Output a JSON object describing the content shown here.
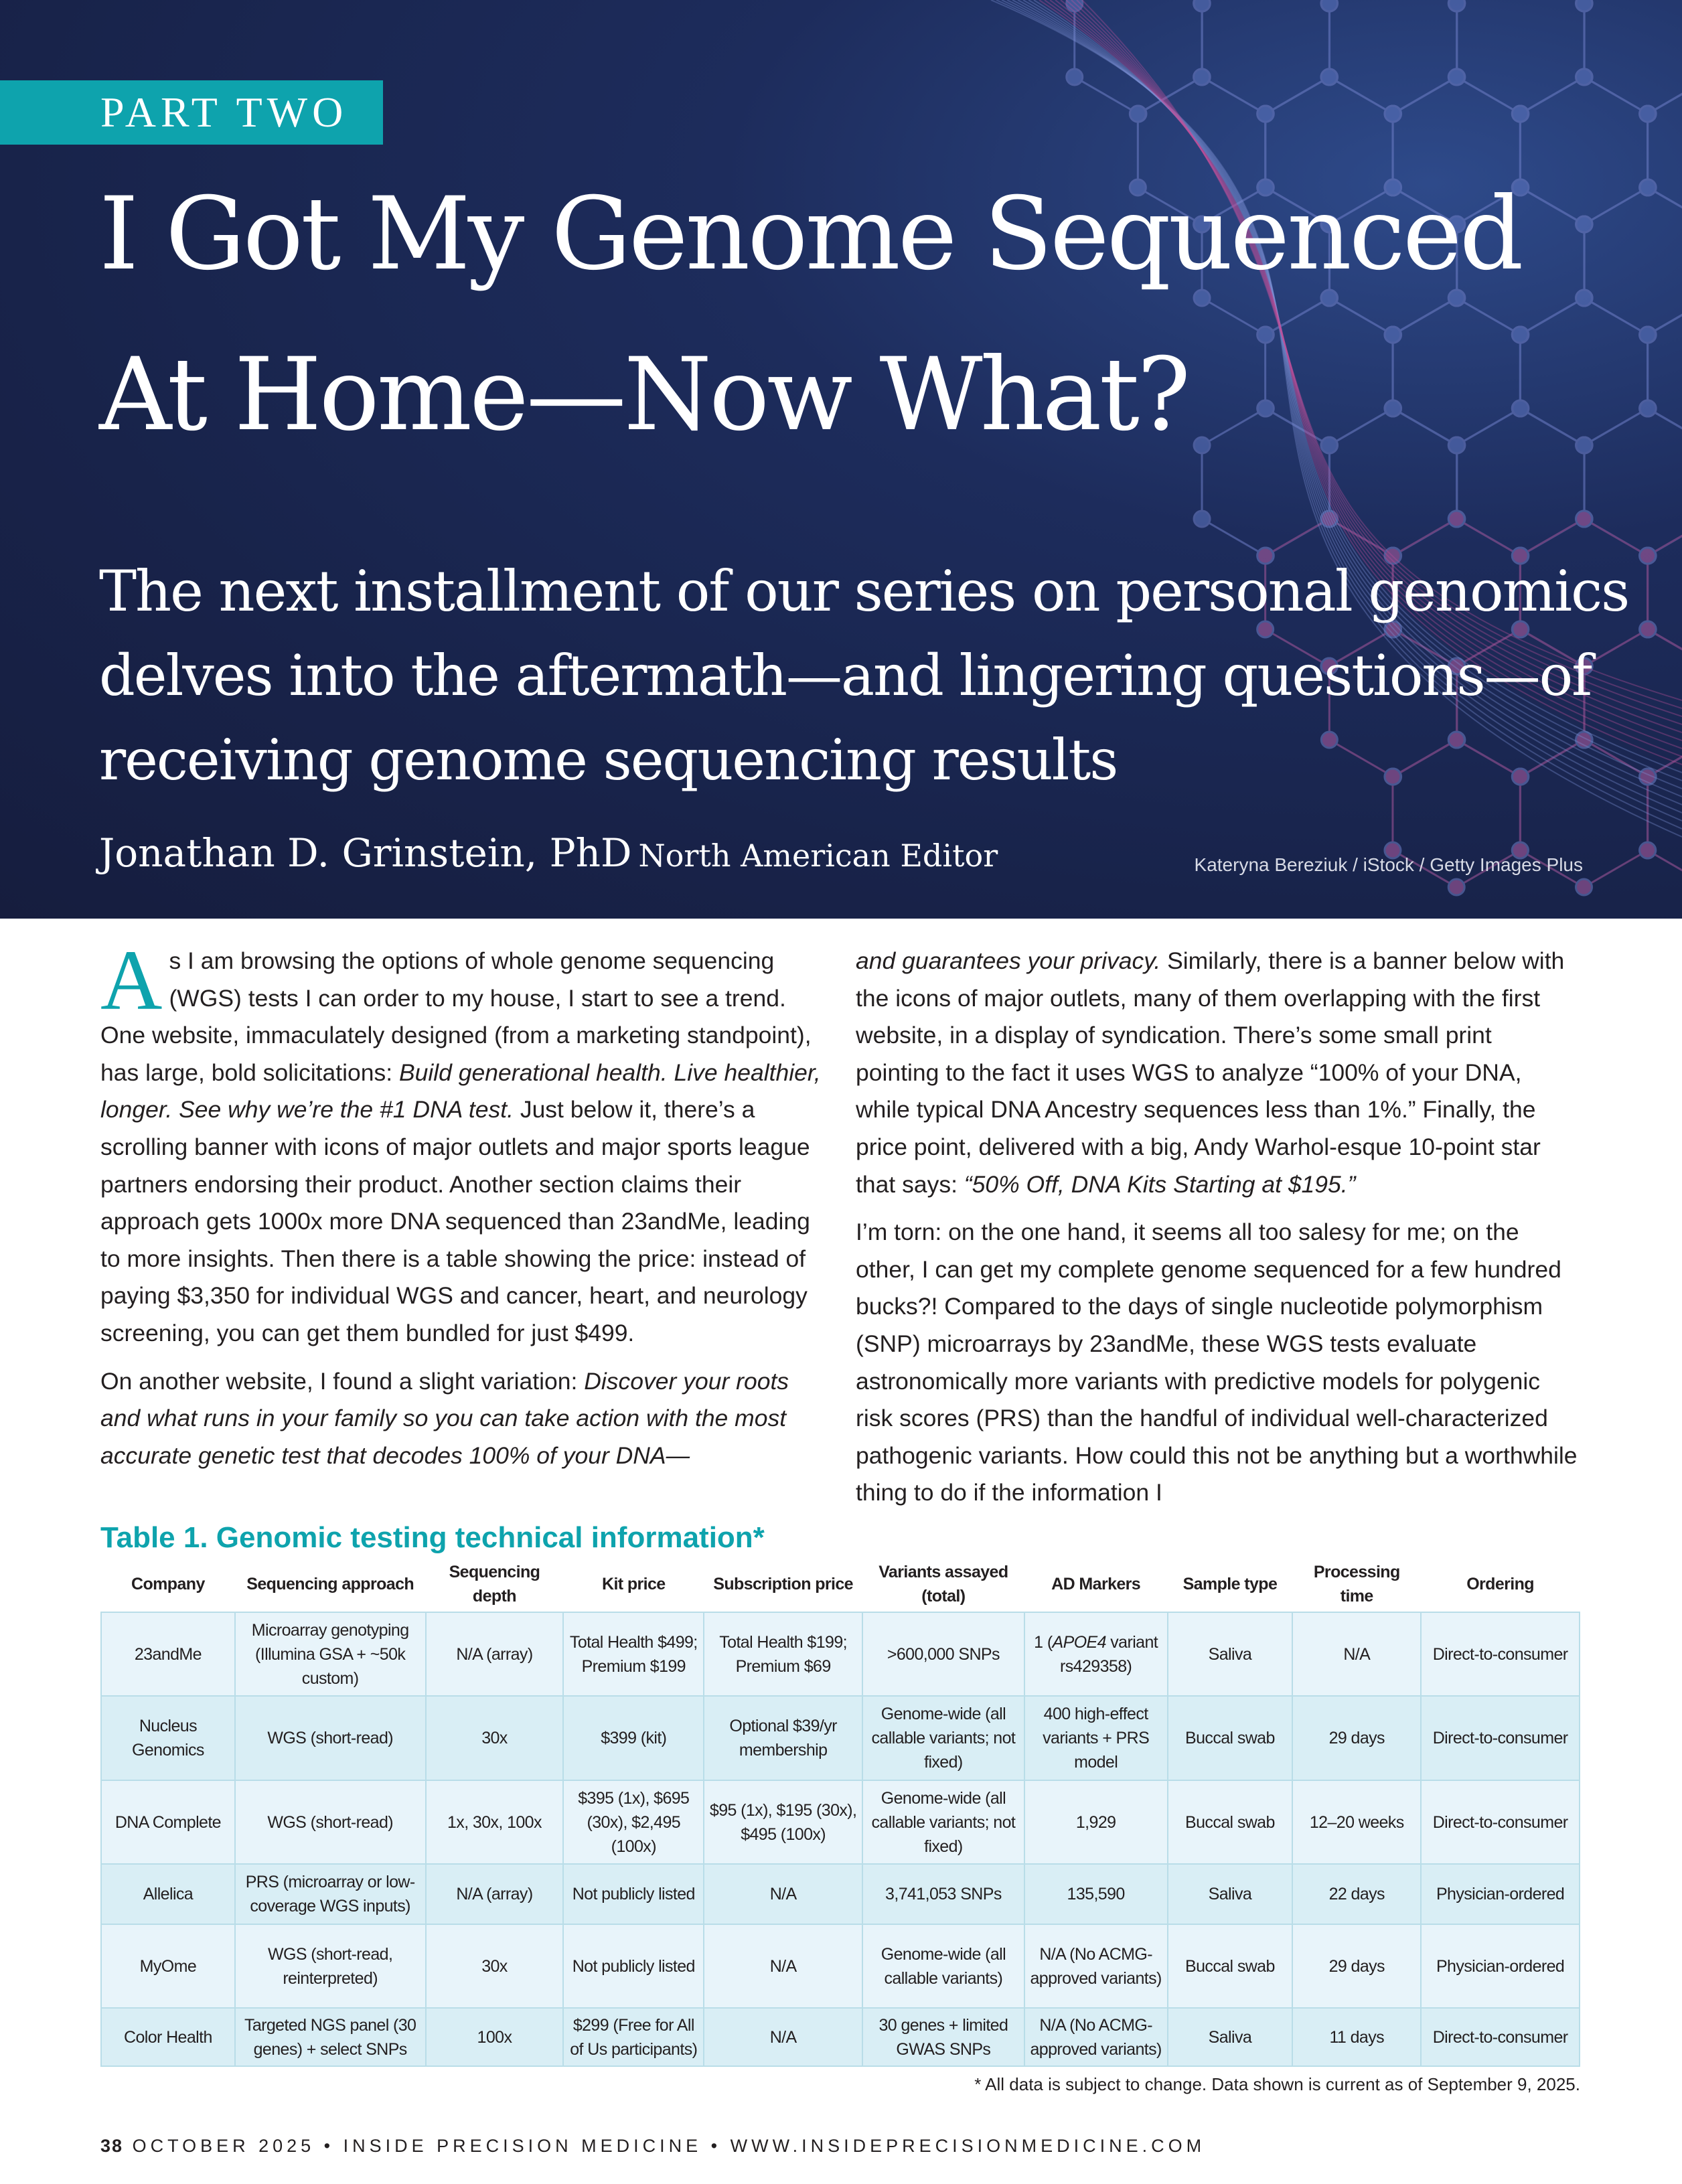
{
  "hero": {
    "part_label": "PART TWO",
    "title_line1": "I Got My Genome Sequenced",
    "title_line2": "At Home—Now What?",
    "subtitle": "The next installment of our series on personal genomics delves into the aftermath—and lingering questions—of receiving genome sequencing results",
    "author": "Jonathan D. Grinstein, PhD",
    "author_role": "North American Editor",
    "photo_credit": "Kateryna Bereziuk / iStock / Getty Images Plus",
    "bg_color": "#1b2755",
    "accent": "#0ea3ad"
  },
  "body": {
    "drop_cap": "A",
    "left": [
      [
        {
          "t": "s I am browsing the options of whole genome sequencing (WGS) tests I can order to my house, I start to see a trend. One website, immaculately designed (from a marketing standpoint), has large, bold solicitations: "
        },
        {
          "t": "Build generational health. Live healthier, longer. See why we’re the #1 DNA test.",
          "i": true
        },
        {
          "t": " Just below it, there’s a scrolling banner with icons of major outlets and major sports league partners endorsing their product. Another section claims their approach gets 1000x more DNA sequenced than 23andMe, leading to more insights. Then there is a table showing the price: instead of paying $3,350 for individual WGS and cancer, heart, and neurology screening, you can get them bundled for just $499."
        }
      ],
      [
        {
          "t": "On another website, I found a slight variation: "
        },
        {
          "t": "Discover your roots and what runs in your family so you can take action with the most accurate genetic test that decodes 100% of your DNA—",
          "i": true
        }
      ]
    ],
    "right": [
      [
        {
          "t": "and guarantees your privacy.",
          "i": true
        },
        {
          "t": " Similarly, there is a banner below with the icons of major outlets, many of them overlapping with the first website, in a display of syndication. There’s some small print pointing to the fact it uses WGS to analyze “100% of your DNA, while typical DNA Ancestry sequences less than 1%.” Finally, the price point, delivered with a big, Andy Warhol-esque 10-point star that says: "
        },
        {
          "t": "“50% Off, DNA Kits Starting at $195.”",
          "i": true
        }
      ],
      [
        {
          "t": "I’m torn: on the one hand, it seems all too salesy for me; on the other, I can get my complete genome sequenced for a few hundred bucks?! Compared to the days of single nucleotide polymorphism (SNP) microarrays by 23andMe, these WGS tests evaluate astronomically more variants with predictive models for polygenic risk scores (PRS) than the handful of individual well-characterized pathogenic variants. How could this not be anything but a worthwhile thing to do if the information I"
        }
      ]
    ]
  },
  "table": {
    "title": "Table 1. Genomic testing technical information*",
    "headers": [
      "Company",
      "Sequencing approach",
      "Sequencing depth",
      "Kit price",
      "Subscription price",
      "Variants assayed (total)",
      "AD Markers",
      "Sample type",
      "Processing time",
      "Ordering"
    ],
    "rows": [
      [
        "23andMe",
        "Microarray genotyping (Illumina GSA + ~50k custom)",
        "N/A (array)",
        "Total Health $499; Premium $199",
        "Total Health $199; Premium $69",
        ">600,000 SNPs",
        "1 (APOE4 variant rs429358)",
        "Saliva",
        "N/A",
        "Direct-to-consumer"
      ],
      [
        "Nucleus Genomics",
        "WGS (short-read)",
        "30x",
        "$399 (kit)",
        "Optional $39/yr membership",
        "Genome-wide (all callable variants; not fixed)",
        "400 high-effect variants + PRS model",
        "Buccal swab",
        "29 days",
        "Direct-to-consumer"
      ],
      [
        "DNA Complete",
        "WGS (short-read)",
        "1x, 30x, 100x",
        "$395 (1x), $695 (30x), $2,495 (100x)",
        "$95 (1x), $195 (30x), $495 (100x)",
        "Genome-wide (all callable variants; not fixed)",
        "1,929",
        "Buccal swab",
        "12–20 weeks",
        "Direct-to-consumer"
      ],
      [
        "Allelica",
        "PRS (microarray or low-coverage WGS inputs)",
        "N/A (array)",
        "Not publicly listed",
        "N/A",
        "3,741,053 SNPs",
        "135,590",
        "Saliva",
        "22 days",
        "Physician-ordered"
      ],
      [
        "MyOme",
        "WGS (short-read, reinterpreted)",
        "30x",
        "Not publicly listed",
        "N/A",
        "Genome-wide (all callable variants)",
        "N/A (No ACMG-approved variants)",
        "Buccal swab",
        "29 days",
        "Physician-ordered"
      ],
      [
        "Color Health",
        "Targeted NGS panel (30 genes) + select SNPs",
        "100x",
        "$299 (Free for All of Us participants)",
        "N/A",
        "30 genes + limited GWAS SNPs",
        "N/A (No ACMG-approved variants)",
        "Saliva",
        "11 days",
        "Direct-to-consumer"
      ]
    ],
    "footnote": "* All data is subject to change. Data shown is current as of September 9, 2025."
  },
  "footer": {
    "page": "38",
    "text": "OCTOBER 2025 • INSIDE PRECISION MEDICINE • WWW.INSIDEPRECISIONMEDICINE.COM"
  }
}
